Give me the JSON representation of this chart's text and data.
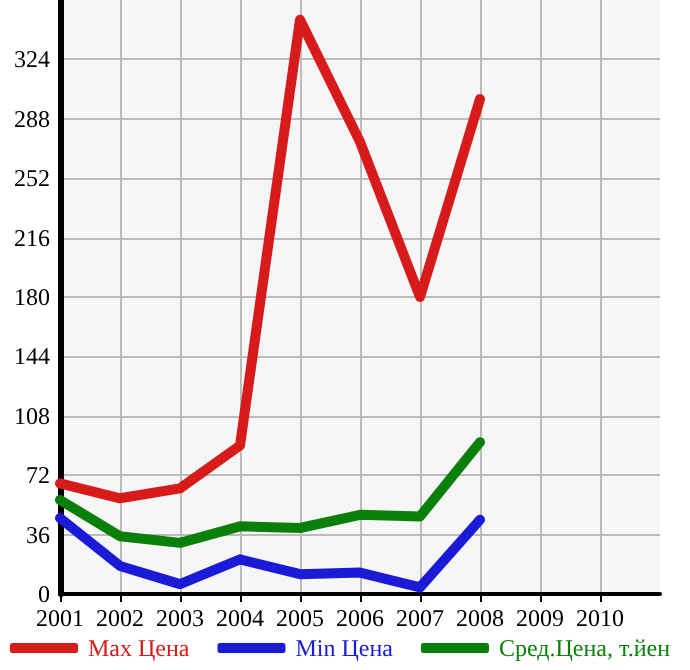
{
  "chart_data": {
    "type": "line",
    "x": [
      2001,
      2002,
      2003,
      2004,
      2005,
      2006,
      2007,
      2008
    ],
    "series": [
      {
        "name": "Max Цена",
        "color": "#d71a1a",
        "values": [
          67,
          58,
          64,
          90,
          348,
          274,
          180,
          300
        ]
      },
      {
        "name": "Min Цена",
        "color": "#1a1ad7",
        "values": [
          46,
          17,
          6,
          21,
          12,
          13,
          4,
          45
        ]
      },
      {
        "name": "Сред.Цена, т.йен",
        "color": "#0a7f0a",
        "values": [
          57,
          35,
          31,
          41,
          40,
          48,
          47,
          92
        ]
      }
    ],
    "xlim": [
      2001,
      2011
    ],
    "xticks": [
      2001,
      2002,
      2003,
      2004,
      2005,
      2006,
      2007,
      2008,
      2009,
      2010
    ],
    "ylim": [
      0,
      360
    ],
    "yticks": [
      0,
      36,
      72,
      108,
      144,
      180,
      216,
      252,
      288,
      324
    ],
    "grid": true,
    "legend": "bottom",
    "marker": "none",
    "line_style": "solid"
  }
}
